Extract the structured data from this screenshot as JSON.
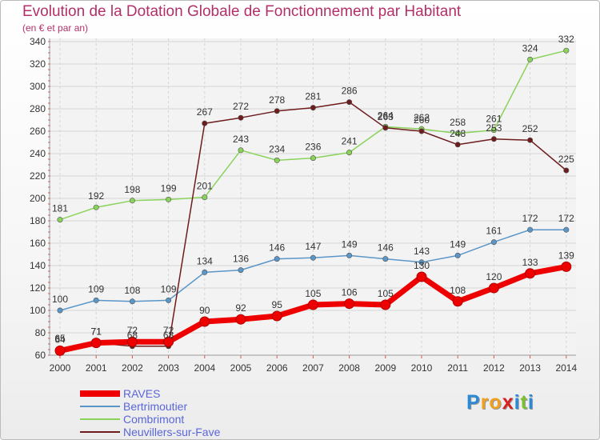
{
  "chart_data": {
    "type": "line",
    "title": "Evolution de la Dotation Globale de Fonctionnement par Habitant",
    "subtitle": "(en € et par an)",
    "categories": [
      "2000",
      "2001",
      "2002",
      "2003",
      "2004",
      "2005",
      "2006",
      "2007",
      "2008",
      "2009",
      "2010",
      "2011",
      "2012",
      "2013",
      "2014"
    ],
    "ylim": [
      60,
      340
    ],
    "yticks": [
      60,
      80,
      100,
      120,
      140,
      160,
      180,
      200,
      220,
      240,
      260,
      280,
      300,
      320,
      340
    ],
    "grid": true,
    "legend_position": "bottom-left",
    "series": [
      {
        "name": "RAVES",
        "color": "#ee0000",
        "values": [
          64,
          71,
          72,
          72,
          90,
          92,
          95,
          105,
          106,
          105,
          130,
          108,
          120,
          133,
          139
        ]
      },
      {
        "name": "Bertrimoutier",
        "color": "#5a96c8",
        "values": [
          100,
          109,
          108,
          109,
          134,
          136,
          146,
          147,
          149,
          146,
          143,
          149,
          161,
          172,
          172
        ]
      },
      {
        "name": "Combrimont",
        "color": "#8ad35a",
        "values": [
          181,
          192,
          198,
          199,
          201,
          243,
          234,
          236,
          241,
          264,
          262,
          258,
          261,
          324,
          332
        ]
      },
      {
        "name": "Neuvillers-sur-Fave",
        "color": "#6e1c1c",
        "values": [
          65,
          71,
          68,
          68,
          267,
          272,
          278,
          281,
          286,
          263,
          260,
          248,
          253,
          252,
          225
        ]
      }
    ]
  },
  "logo": {
    "letters": [
      "P",
      "r",
      "o",
      "x",
      "i",
      "t",
      "i"
    ],
    "colors": [
      "#2a8ad8",
      "#f0a020",
      "#f0a020",
      "#d82020",
      "#2a8ad8",
      "#7cc030",
      "#2a8ad8"
    ]
  }
}
